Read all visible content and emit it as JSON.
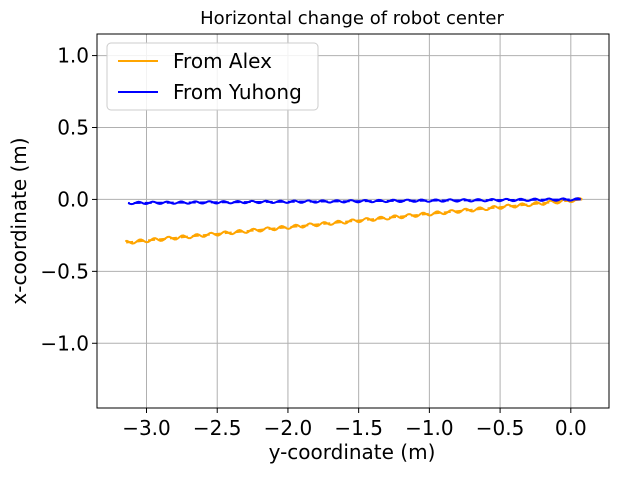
{
  "chart_data": {
    "type": "line",
    "title": "Horizontal change of robot center",
    "xlabel": "y-coordinate (m)",
    "ylabel": "x-coordinate (m)",
    "xlim": [
      -3.35,
      0.27
    ],
    "ylim": [
      -1.45,
      1.15
    ],
    "xticks": [
      -3.0,
      -2.5,
      -2.0,
      -1.5,
      -1.0,
      -0.5,
      0.0
    ],
    "xtick_labels": [
      "−3.0",
      "−2.5",
      "−2.0",
      "−1.5",
      "−1.0",
      "−0.5",
      "0.0"
    ],
    "yticks": [
      1.0,
      0.5,
      0.0,
      -0.5,
      -1.0
    ],
    "ytick_labels": [
      "1.0",
      "0.5",
      "0.0",
      "−0.5",
      "−1.0"
    ],
    "grid": true,
    "legend_position": "upper-left",
    "series": [
      {
        "name": "From Alex",
        "color": "#ffa500",
        "x_start": 0.08,
        "y_start": 0.0,
        "x_end": -3.15,
        "y_end": -0.3,
        "oscillation_amplitude": 0.012,
        "oscillation_period": 0.1
      },
      {
        "name": "From Yuhong",
        "color": "#0000ff",
        "x_start": 0.07,
        "y_start": 0.0,
        "x_end": -3.13,
        "y_end": -0.025,
        "oscillation_amplitude": 0.008,
        "oscillation_period": 0.1
      }
    ]
  }
}
